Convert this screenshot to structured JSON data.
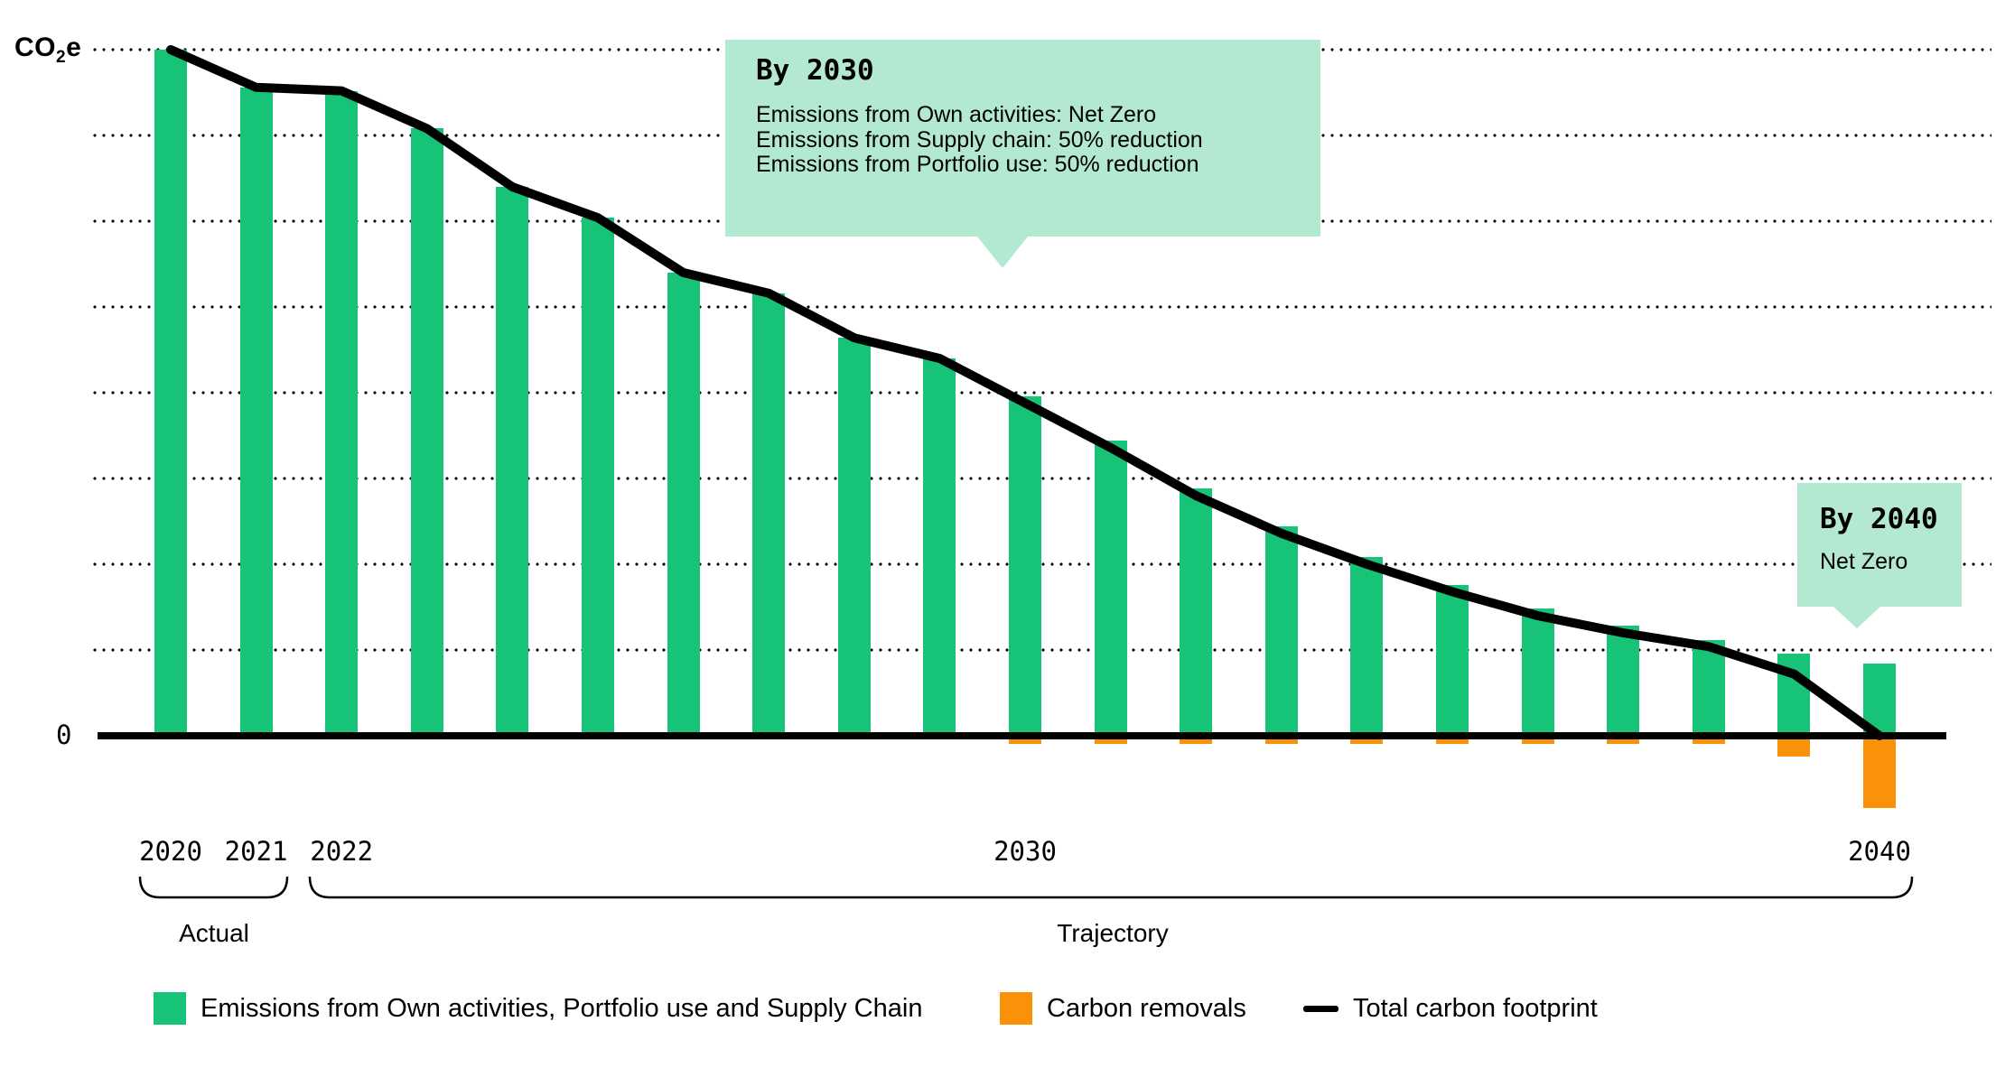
{
  "colors": {
    "emissions_green": "#17C377",
    "removals_orange": "#FB9108",
    "callout_mint": "#B3E8D1",
    "line_black": "#000000",
    "background": "#FFFFFF"
  },
  "y_axis": {
    "label_pre": "CO",
    "label_sub": "2",
    "label_post": "e",
    "zero_label": "0"
  },
  "x_axis": {
    "labels": [
      {
        "text": "2020",
        "year_index": 0
      },
      {
        "text": "2021",
        "year_index": 1
      },
      {
        "text": "2022",
        "year_index": 2
      },
      {
        "text": "2030",
        "year_index": 10
      },
      {
        "text": "2040",
        "year_index": 20
      }
    ]
  },
  "callouts": [
    {
      "heading": "By 2030",
      "lines": [
        "Emissions from Own activities: Net Zero",
        "Emissions from Supply chain: 50% reduction",
        "Emissions from Portfolio use: 50% reduction"
      ]
    },
    {
      "heading": "By 2040",
      "lines": [
        "Net Zero"
      ]
    }
  ],
  "brackets": [
    {
      "label": "Actual"
    },
    {
      "label": "Trajectory"
    }
  ],
  "legend": {
    "items": [
      {
        "swatch": "green-square",
        "label": "Emissions from Own activities, Portfolio use and Supply Chain"
      },
      {
        "swatch": "orange-square",
        "label": "Carbon removals"
      },
      {
        "swatch": "black-line",
        "label": "Total carbon footprint"
      }
    ]
  },
  "chart_data": {
    "type": "bar",
    "title": "",
    "xlabel": "",
    "ylabel": "CO2e",
    "ylim": [
      -12.5,
      100
    ],
    "ytick_interval": 12.5,
    "grid": "dotted horizontal gridlines every 12.5 units, 8 above zero",
    "legend_position": "bottom",
    "x": [
      2020,
      2021,
      2022,
      2023,
      2024,
      2025,
      2026,
      2027,
      2028,
      2029,
      2030,
      2031,
      2032,
      2033,
      2034,
      2035,
      2036,
      2037,
      2038,
      2039,
      2040
    ],
    "x_groups": [
      {
        "label": "Actual",
        "years": [
          2020,
          2021
        ]
      },
      {
        "label": "Trajectory",
        "years": [
          2022,
          2040
        ]
      }
    ],
    "value_note": "relative scale, 2020 baseline = 100 (no numeric y tick labels shown except 0)",
    "series": [
      {
        "name": "Emissions from Own activities, Portfolio use and Supply Chain",
        "type": "bar",
        "color": "#17C377",
        "values": [
          100,
          94.5,
          94,
          88.5,
          80,
          75.5,
          67.5,
          64.5,
          58,
          55,
          49.5,
          43,
          36,
          30.5,
          26,
          22,
          18.5,
          16,
          14,
          12,
          10.5
        ]
      },
      {
        "name": "Carbon removals",
        "type": "bar",
        "color": "#FB9108",
        "values": [
          0,
          0,
          0,
          0,
          0,
          0,
          0,
          0,
          0,
          0,
          -1.2,
          -1.2,
          -1.2,
          -1.2,
          -1.2,
          -1.2,
          -1.2,
          -1.2,
          -1.2,
          -3,
          -10.5
        ]
      },
      {
        "name": "Total carbon footprint",
        "type": "line",
        "color": "#000000",
        "values": [
          100,
          94.5,
          94,
          88.5,
          80,
          75.5,
          67.5,
          64.5,
          58,
          55,
          48.5,
          42,
          35,
          29.5,
          25,
          21,
          17.5,
          15,
          13,
          9,
          0
        ]
      }
    ]
  }
}
